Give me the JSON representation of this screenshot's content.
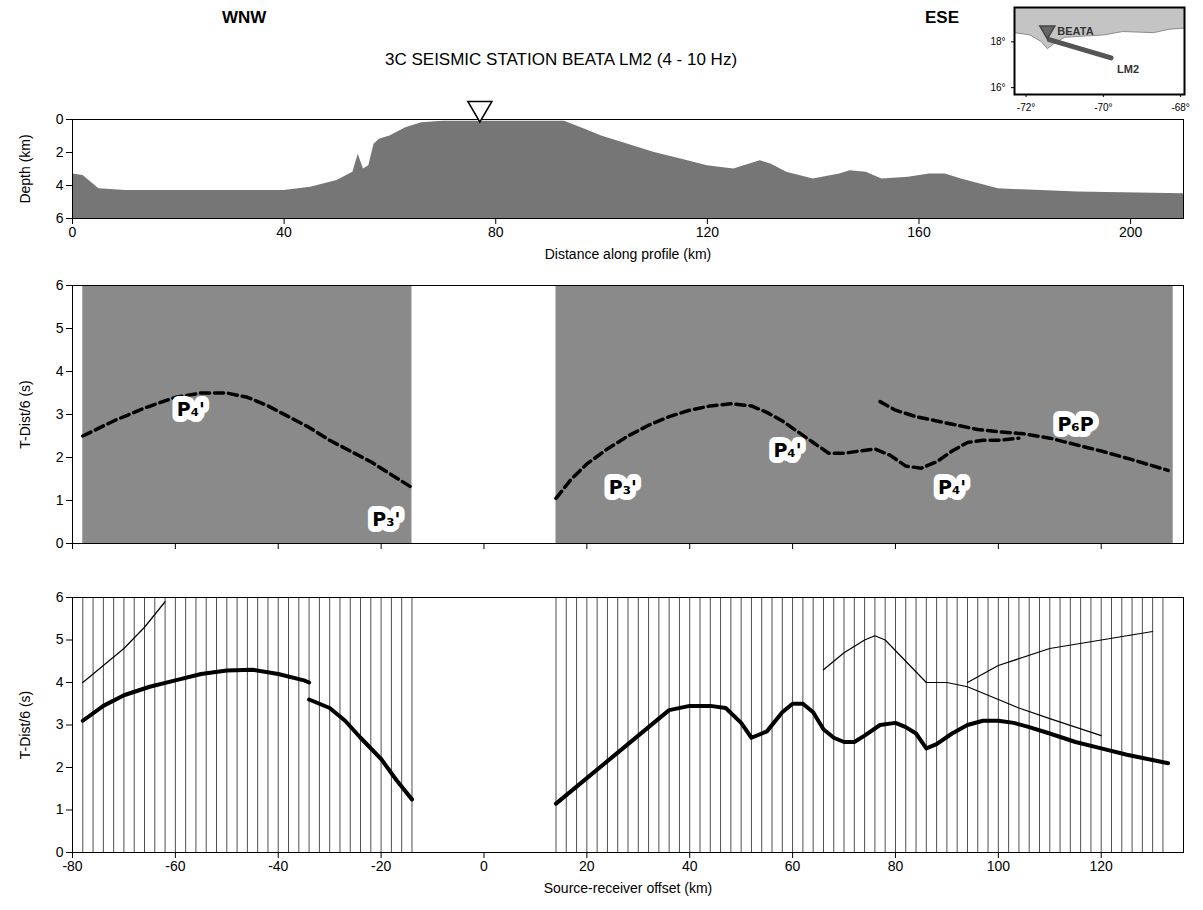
{
  "chart_data": [
    {
      "type": "area",
      "title": "3C SEISMIC STATION BEATA LM2 (4 - 10 Hz)",
      "direction_labels": [
        "WNW",
        "ESE"
      ],
      "x_label": "Distance along profile (km)",
      "y_label": "Depth (km)",
      "x": [
        0,
        2,
        5,
        10,
        40,
        45,
        50,
        53,
        54,
        55,
        56,
        57,
        58,
        60,
        63,
        66,
        70,
        93,
        97,
        100,
        105,
        110,
        115,
        120,
        125,
        128,
        130,
        132,
        135,
        140,
        145,
        147,
        150,
        153,
        158,
        162,
        165,
        168,
        175,
        190,
        210
      ],
      "values": [
        3.3,
        3.4,
        4.2,
        4.3,
        4.3,
        4.1,
        3.7,
        3.2,
        2.1,
        3.0,
        2.8,
        1.5,
        1.2,
        1.0,
        0.5,
        0.2,
        0.1,
        0.1,
        0.6,
        1.0,
        1.5,
        2.0,
        2.4,
        2.8,
        3.0,
        2.7,
        2.5,
        2.7,
        3.2,
        3.6,
        3.3,
        3.1,
        3.2,
        3.6,
        3.5,
        3.3,
        3.3,
        3.6,
        4.2,
        4.4,
        4.5
      ],
      "color": "#767676",
      "station": {
        "x": 77,
        "marker": "triangle"
      },
      "xlim": [
        0,
        210
      ],
      "ylim": [
        6,
        0
      ],
      "xticks": [
        0,
        40,
        80,
        120,
        160,
        200
      ],
      "yticks": [
        0,
        2,
        4,
        6
      ]
    },
    {
      "type": "map",
      "land": {
        "x": [
          -72.3,
          -67.9,
          -67.9,
          -68.3,
          -68.7,
          -69.5,
          -70.0,
          -70.5,
          -71.0,
          -71.3,
          -71.45,
          -71.6,
          -71.9,
          -72.3
        ],
        "y": [
          19.5,
          19.5,
          18.6,
          18.55,
          18.4,
          18.45,
          18.3,
          18.25,
          18.2,
          17.9,
          17.7,
          18.0,
          18.3,
          18.4
        ]
      },
      "color": "#c4c4c4",
      "series": [
        {
          "name": "LM2",
          "x": [
            -71.4,
            -69.8
          ],
          "values": [
            18.1,
            17.3
          ],
          "color": "#555555"
        }
      ],
      "station": {
        "name": "BEATA",
        "x": -71.45,
        "y": 18.45,
        "marker": "triangle"
      },
      "xlim": [
        -72.3,
        -67.9
      ],
      "ylim": [
        15.7,
        19.5
      ],
      "xticks": [
        {
          "value": -72,
          "label": "-72°"
        },
        {
          "value": -70,
          "label": "-70°"
        },
        {
          "value": -68,
          "label": "-68°"
        }
      ],
      "yticks": [
        {
          "value": 16,
          "label": "16°"
        },
        {
          "value": 18,
          "label": "18°"
        }
      ]
    },
    {
      "type": "record_section",
      "y_label": "T-Dist/6 (s)",
      "data_ranges": [
        [
          -78,
          -14
        ],
        [
          14,
          134
        ]
      ],
      "color": "#8a8a8a",
      "series": [
        {
          "x": [
            -78,
            -72,
            -66,
            -60,
            -55,
            -50,
            -46,
            -42,
            -38,
            -34,
            -30,
            -26,
            -22,
            -18,
            -14
          ],
          "values": [
            2.5,
            2.85,
            3.15,
            3.4,
            3.5,
            3.5,
            3.4,
            3.2,
            2.95,
            2.7,
            2.4,
            2.15,
            1.9,
            1.6,
            1.3
          ],
          "line_style": "dashed",
          "color": "#000000"
        },
        {
          "x": [
            14,
            17,
            20,
            24,
            28,
            32,
            36,
            40,
            44,
            48,
            52,
            55,
            58,
            61,
            64,
            67,
            70,
            73,
            76,
            79,
            82,
            85,
            88,
            91,
            94,
            97,
            100,
            104
          ],
          "values": [
            1.05,
            1.5,
            1.85,
            2.2,
            2.5,
            2.75,
            2.95,
            3.1,
            3.2,
            3.25,
            3.2,
            3.05,
            2.85,
            2.6,
            2.35,
            2.1,
            2.1,
            2.15,
            2.2,
            2.05,
            1.8,
            1.75,
            1.9,
            2.15,
            2.35,
            2.4,
            2.4,
            2.45
          ],
          "line_style": "dashed",
          "color": "#000000"
        },
        {
          "x": [
            77,
            80,
            84,
            88,
            92,
            96,
            100,
            105,
            110,
            115,
            120,
            126,
            133
          ],
          "values": [
            3.3,
            3.1,
            2.95,
            2.85,
            2.75,
            2.65,
            2.6,
            2.55,
            2.45,
            2.3,
            2.15,
            1.95,
            1.7
          ],
          "line_style": "dashed",
          "color": "#000000"
        }
      ],
      "annotations": [
        {
          "text": "P₄'",
          "x": -57,
          "y": 3.1
        },
        {
          "text": "P₃'",
          "x": -19,
          "y": 0.55
        },
        {
          "text": "P₃'",
          "x": 27,
          "y": 1.3
        },
        {
          "text": "P₄'",
          "x": 59,
          "y": 2.15
        },
        {
          "text": "P₄'",
          "x": 91,
          "y": 1.3
        },
        {
          "text": "P₆P",
          "x": 115,
          "y": 2.75
        }
      ],
      "tick_labels": "y",
      "xlim": [
        -80,
        136
      ],
      "ylim": [
        0,
        6
      ],
      "xticks": [
        -80,
        -60,
        -40,
        -20,
        0,
        20,
        40,
        60,
        80,
        100,
        120
      ],
      "yticks": [
        0,
        1,
        2,
        3,
        4,
        5,
        6
      ]
    },
    {
      "type": "synthetic_section",
      "x_label": "Source-receiver offset (km)",
      "y_label": "T-Dist/6 (s)",
      "color": "#000000",
      "traces": [
        -78,
        -76,
        -74,
        -72,
        -70,
        -68,
        -66,
        -64,
        -62,
        -60,
        -58,
        -56,
        -54,
        -52,
        -50,
        -48,
        -46,
        -44,
        -42,
        -40,
        -38,
        -36,
        -34,
        -32,
        -30,
        -28,
        -26,
        -24,
        -22,
        -20,
        -18,
        -16,
        -14,
        14,
        16,
        18,
        20,
        22,
        24,
        26,
        28,
        30,
        32,
        34,
        36,
        38,
        40,
        42,
        44,
        46,
        48,
        50,
        52,
        54,
        56,
        58,
        60,
        62,
        64,
        66,
        68,
        70,
        72,
        74,
        76,
        78,
        80,
        82,
        84,
        86,
        88,
        90,
        92,
        94,
        96,
        98,
        100,
        102,
        104,
        106,
        108,
        110,
        112,
        114,
        116,
        118,
        120,
        122,
        124,
        126,
        128,
        130,
        132
      ],
      "series": [
        {
          "x": [
            -78,
            -74,
            -70,
            -65,
            -60,
            -55,
            -50,
            -45,
            -40,
            -35,
            -34
          ],
          "values": [
            3.1,
            3.45,
            3.7,
            3.9,
            4.05,
            4.2,
            4.28,
            4.3,
            4.2,
            4.05,
            4.0
          ],
          "line_style": "solid"
        },
        {
          "x": [
            -34,
            -30,
            -27,
            -24,
            -20,
            -17,
            -14
          ],
          "values": [
            3.6,
            3.4,
            3.1,
            2.7,
            2.2,
            1.7,
            1.25
          ],
          "line_style": "solid"
        },
        {
          "x": [
            -78,
            -74,
            -70,
            -66,
            -62
          ],
          "values": [
            4.0,
            4.4,
            4.8,
            5.3,
            5.9
          ],
          "line_style": "thin"
        },
        {
          "x": [
            14,
            20,
            26,
            32,
            36,
            40,
            44,
            47,
            50,
            52,
            55,
            58,
            60,
            62,
            64,
            66,
            68,
            70,
            72,
            74,
            77,
            80,
            82,
            84,
            86,
            88,
            91,
            94,
            97,
            100,
            103,
            106,
            110,
            115,
            120,
            125,
            133
          ],
          "values": [
            1.15,
            1.75,
            2.35,
            2.95,
            3.35,
            3.45,
            3.45,
            3.4,
            3.05,
            2.7,
            2.85,
            3.3,
            3.5,
            3.5,
            3.3,
            2.9,
            2.7,
            2.6,
            2.6,
            2.75,
            3.0,
            3.05,
            2.95,
            2.8,
            2.45,
            2.55,
            2.8,
            3.0,
            3.1,
            3.1,
            3.05,
            2.95,
            2.8,
            2.6,
            2.45,
            2.3,
            2.1
          ],
          "line_style": "solid"
        },
        {
          "x": [
            66,
            70,
            74,
            76,
            78,
            82,
            86,
            90,
            94,
            98,
            104,
            110,
            120
          ],
          "values": [
            4.3,
            4.7,
            5.0,
            5.1,
            5.0,
            4.5,
            4.0,
            4.0,
            3.9,
            3.7,
            3.4,
            3.15,
            2.75
          ],
          "line_style": "thin"
        },
        {
          "x": [
            94,
            100,
            110,
            120,
            130
          ],
          "values": [
            4.0,
            4.4,
            4.8,
            5.0,
            5.2
          ],
          "line_style": "thin"
        }
      ],
      "xlim": [
        -80,
        136
      ],
      "ylim": [
        0,
        6
      ],
      "xticks": [
        -80,
        -60,
        -40,
        -20,
        0,
        20,
        40,
        60,
        80,
        100,
        120
      ],
      "yticks": [
        0,
        1,
        2,
        3,
        4,
        5,
        6
      ]
    }
  ]
}
